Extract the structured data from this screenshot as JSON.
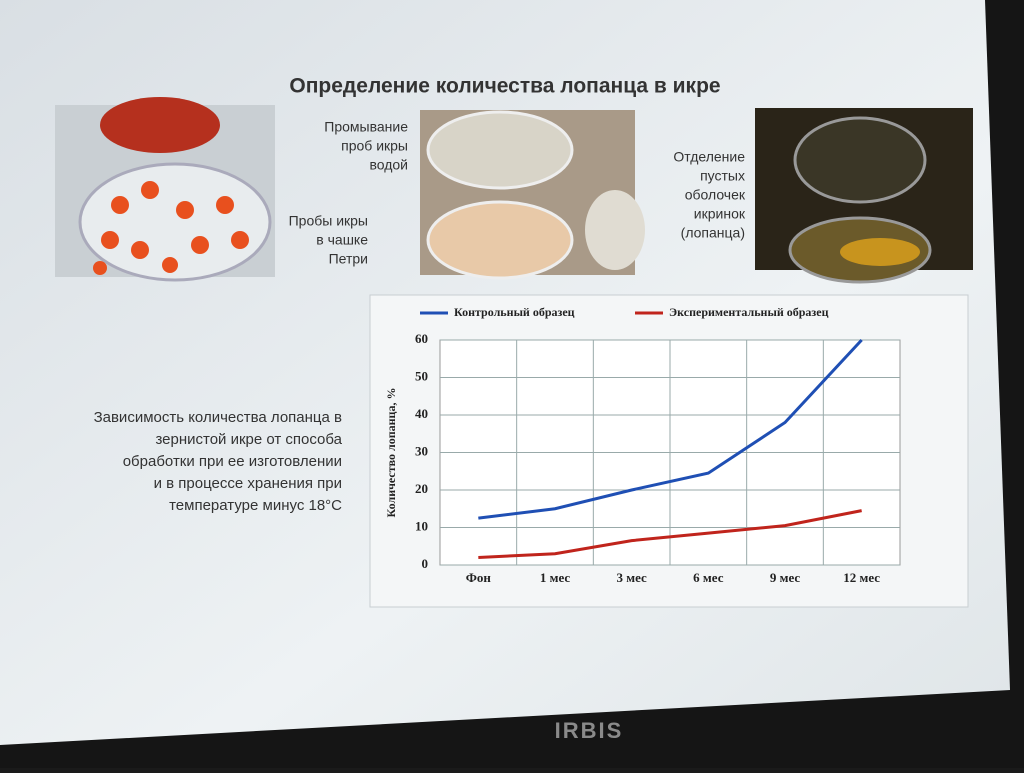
{
  "slide": {
    "title": "Определение количества лопанца в икре",
    "captions": [
      {
        "lines": [
          "Промывание",
          "проб икры",
          "водой"
        ]
      },
      {
        "lines": [
          "Пробы икры",
          "в чашке",
          "Петри"
        ]
      },
      {
        "lines": [
          "Отделение",
          "пустых",
          "оболочек",
          "икринок",
          "(лопанца)"
        ]
      }
    ],
    "description": {
      "lines": [
        "Зависимость количества лопанца в",
        "зернистой икре от способа",
        "обработки при ее изготовлении",
        "и в процессе хранения при",
        "температуре минус 18°C"
      ]
    },
    "brand": "IRBIS"
  },
  "chart_data": {
    "type": "line",
    "y_label": "Количество лопанца, %",
    "categories": [
      "Фон",
      "1 мес",
      "3 мес",
      "6 мес",
      "9 мес",
      "12 мес"
    ],
    "series": [
      {
        "name": "Контрольный образец",
        "color": "#1f4fb4",
        "values": [
          12.5,
          15,
          20,
          24.5,
          38,
          60
        ]
      },
      {
        "name": "Экспериментальный образец",
        "color": "#c0241c",
        "values": [
          2,
          3,
          6.5,
          8.5,
          10.5,
          14.5
        ]
      }
    ],
    "ylim": [
      0,
      60
    ],
    "yticks": [
      0,
      10,
      20,
      30,
      40,
      50,
      60
    ],
    "grid": true,
    "legend": "top"
  }
}
